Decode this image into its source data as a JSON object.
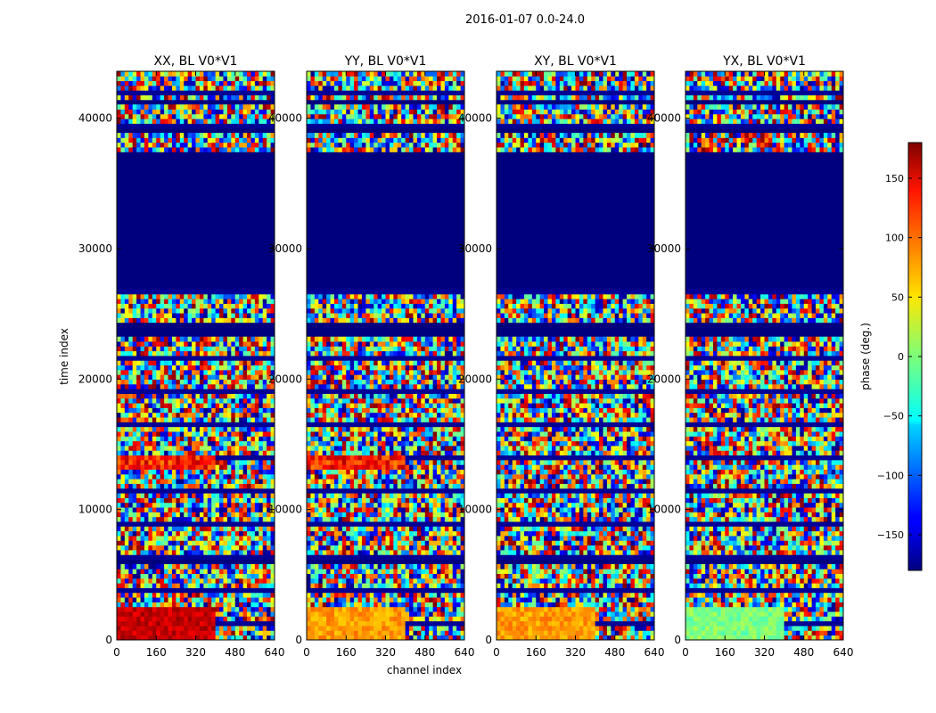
{
  "chart_data": {
    "type": "heatmap",
    "suptitle": "2016-01-07 0.0-24.0",
    "colormap": "jet",
    "xlabel": "channel index",
    "ylabel": "time index",
    "x_range": [
      0,
      640
    ],
    "y_range": [
      0,
      43600
    ],
    "x_ticks": [
      0,
      160,
      320,
      480,
      640
    ],
    "y_ticks": [
      0,
      10000,
      20000,
      30000,
      40000
    ],
    "x_tick_labels": [
      "0",
      "160",
      "320",
      "480",
      "640"
    ],
    "y_tick_labels": [
      "0",
      "10000",
      "20000",
      "30000",
      "40000"
    ],
    "panels": [
      {
        "title": "XX, BL V0*V1",
        "pol": "XX"
      },
      {
        "title": "YY, BL V0*V1",
        "pol": "YY"
      },
      {
        "title": "XY, BL V0*V1",
        "pol": "XY"
      },
      {
        "title": "YX, BL V0*V1",
        "pol": "YX"
      }
    ],
    "flagged_time_ranges": [
      [
        27000,
        37500
      ],
      [
        23400,
        24300
      ],
      [
        5800,
        6200
      ],
      [
        39000,
        39200
      ],
      [
        41100,
        41300
      ]
    ],
    "colorbar": {
      "label": "phase (deg.)",
      "vmin": -180,
      "vmax": 180,
      "ticks": [
        150,
        100,
        50,
        0,
        -50,
        -100,
        -150
      ],
      "tick_labels": [
        "150",
        "100",
        "50",
        "0",
        "−50",
        "−100",
        "−150"
      ]
    }
  }
}
